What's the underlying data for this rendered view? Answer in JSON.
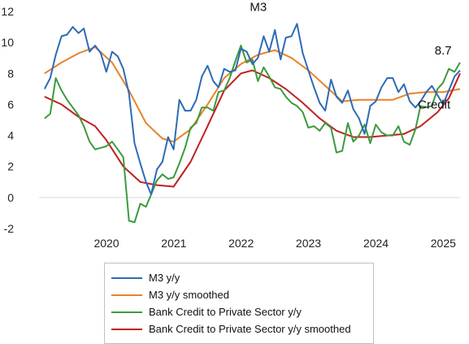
{
  "chart_data": {
    "type": "line",
    "title": "",
    "xlabel": "",
    "ylabel": "",
    "x_range": [
      "2019-07-01",
      "2025-09-30"
    ],
    "year_labels": [
      "2020",
      "2021",
      "2022",
      "2023",
      "2024",
      "2025"
    ],
    "ylim": [
      -2,
      12
    ],
    "y_ticks": [
      "-2",
      "0",
      "2",
      "4",
      "6",
      "8",
      "10",
      "12"
    ],
    "y_tick_values": [
      -2,
      0,
      2,
      4,
      6,
      8,
      10,
      12
    ],
    "grid": false,
    "legend_position": "bottom",
    "annotations": [
      {
        "text": "M3",
        "series": "M3 y/y",
        "x": "2022-11-15",
        "y": 11.2
      },
      {
        "text": "8.7",
        "series": "Bank Credit to Private Sector y/y",
        "x": "2025-08-31",
        "y": 8.7
      },
      {
        "text": "Credit",
        "series": "Bank Credit to Private Sector y/y",
        "x": "2025-07-31",
        "y": 4.9
      }
    ],
    "series": [
      {
        "name": "M3 y/y",
        "color": "#2e6bb5",
        "points": [
          [
            "2019-07-31",
            7.0
          ],
          [
            "2019-08-31",
            7.7
          ],
          [
            "2019-09-30",
            9.2
          ],
          [
            "2019-10-31",
            10.4
          ],
          [
            "2019-11-30",
            10.5
          ],
          [
            "2019-12-31",
            11.0
          ],
          [
            "2020-01-31",
            10.6
          ],
          [
            "2020-02-29",
            10.9
          ],
          [
            "2020-03-31",
            9.4
          ],
          [
            "2020-04-30",
            9.8
          ],
          [
            "2020-05-31",
            9.3
          ],
          [
            "2020-06-30",
            8.1
          ],
          [
            "2020-07-31",
            9.4
          ],
          [
            "2020-08-31",
            9.1
          ],
          [
            "2020-09-30",
            8.3
          ],
          [
            "2020-10-31",
            6.7
          ],
          [
            "2020-11-30",
            3.5
          ],
          [
            "2020-12-31",
            2.2
          ],
          [
            "2021-01-31",
            1.0
          ],
          [
            "2021-02-28",
            0.2
          ],
          [
            "2021-03-31",
            1.8
          ],
          [
            "2021-04-30",
            2.3
          ],
          [
            "2021-05-31",
            3.9
          ],
          [
            "2021-06-30",
            3.1
          ],
          [
            "2021-07-31",
            6.3
          ],
          [
            "2021-08-31",
            5.6
          ],
          [
            "2021-09-30",
            5.6
          ],
          [
            "2021-10-31",
            6.3
          ],
          [
            "2021-11-30",
            7.8
          ],
          [
            "2021-12-31",
            8.5
          ],
          [
            "2022-01-31",
            7.5
          ],
          [
            "2022-02-28",
            7.1
          ],
          [
            "2022-03-31",
            8.3
          ],
          [
            "2022-04-30",
            8.1
          ],
          [
            "2022-05-31",
            8.2
          ],
          [
            "2022-06-30",
            9.6
          ],
          [
            "2022-07-31",
            9.4
          ],
          [
            "2022-08-31",
            8.6
          ],
          [
            "2022-09-30",
            9.0
          ],
          [
            "2022-10-31",
            10.4
          ],
          [
            "2022-11-30",
            9.4
          ],
          [
            "2022-12-31",
            10.8
          ],
          [
            "2023-01-31",
            8.9
          ],
          [
            "2023-02-28",
            10.3
          ],
          [
            "2023-03-31",
            10.4
          ],
          [
            "2023-04-30",
            11.2
          ],
          [
            "2023-05-31",
            9.3
          ],
          [
            "2023-06-30",
            8.2
          ],
          [
            "2023-07-31",
            7.1
          ],
          [
            "2023-08-31",
            6.1
          ],
          [
            "2023-09-30",
            5.6
          ],
          [
            "2023-10-31",
            7.6
          ],
          [
            "2023-11-30",
            6.5
          ],
          [
            "2023-12-31",
            6.1
          ],
          [
            "2024-01-31",
            6.9
          ],
          [
            "2024-02-29",
            5.7
          ],
          [
            "2024-03-31",
            5.1
          ],
          [
            "2024-04-30",
            4.1
          ],
          [
            "2024-05-31",
            5.9
          ],
          [
            "2024-06-30",
            6.2
          ],
          [
            "2024-07-31",
            7.1
          ],
          [
            "2024-08-31",
            7.7
          ],
          [
            "2024-09-30",
            7.7
          ],
          [
            "2024-10-31",
            6.8
          ],
          [
            "2024-11-30",
            7.3
          ],
          [
            "2024-12-31",
            6.2
          ],
          [
            "2025-01-31",
            5.8
          ],
          [
            "2025-02-28",
            6.2
          ],
          [
            "2025-03-31",
            6.8
          ],
          [
            "2025-04-30",
            7.2
          ],
          [
            "2025-05-31",
            6.6
          ],
          [
            "2025-06-30",
            6.0
          ],
          [
            "2025-07-31",
            6.9
          ],
          [
            "2025-08-31",
            7.8
          ],
          [
            "2025-09-30",
            8.2
          ]
        ]
      },
      {
        "name": "M3 y/y smoothed",
        "color": "#e8822a",
        "points": [
          [
            "2019-07-31",
            8.0
          ],
          [
            "2019-10-31",
            8.7
          ],
          [
            "2020-01-31",
            9.3
          ],
          [
            "2020-04-30",
            9.7
          ],
          [
            "2020-07-31",
            8.7
          ],
          [
            "2020-10-31",
            6.9
          ],
          [
            "2021-01-31",
            4.8
          ],
          [
            "2021-04-30",
            3.8
          ],
          [
            "2021-06-30",
            3.6
          ],
          [
            "2021-09-30",
            4.4
          ],
          [
            "2021-12-31",
            6.0
          ],
          [
            "2022-03-31",
            7.7
          ],
          [
            "2022-06-30",
            8.6
          ],
          [
            "2022-09-30",
            9.2
          ],
          [
            "2022-12-31",
            9.5
          ],
          [
            "2023-03-31",
            9.0
          ],
          [
            "2023-06-30",
            8.2
          ],
          [
            "2023-09-30",
            7.2
          ],
          [
            "2023-12-31",
            6.2
          ],
          [
            "2024-03-31",
            6.3
          ],
          [
            "2024-06-30",
            6.3
          ],
          [
            "2024-09-30",
            6.3
          ],
          [
            "2024-12-31",
            6.7
          ],
          [
            "2025-03-31",
            6.8
          ],
          [
            "2025-06-30",
            6.8
          ],
          [
            "2025-09-30",
            7.0
          ]
        ]
      },
      {
        "name": "Bank Credit to Private Sector y/y",
        "color": "#3c9a3c",
        "points": [
          [
            "2019-07-31",
            5.1
          ],
          [
            "2019-08-31",
            5.4
          ],
          [
            "2019-09-30",
            7.7
          ],
          [
            "2019-10-31",
            6.9
          ],
          [
            "2019-11-30",
            6.3
          ],
          [
            "2019-12-31",
            5.8
          ],
          [
            "2020-01-31",
            5.3
          ],
          [
            "2020-02-29",
            4.6
          ],
          [
            "2020-03-31",
            3.6
          ],
          [
            "2020-04-30",
            3.1
          ],
          [
            "2020-05-31",
            3.2
          ],
          [
            "2020-06-30",
            3.3
          ],
          [
            "2020-07-31",
            3.6
          ],
          [
            "2020-08-31",
            3.1
          ],
          [
            "2020-09-30",
            2.6
          ],
          [
            "2020-10-31",
            -1.5
          ],
          [
            "2020-11-30",
            -1.6
          ],
          [
            "2020-12-31",
            -0.4
          ],
          [
            "2021-01-31",
            -0.6
          ],
          [
            "2021-02-28",
            0.2
          ],
          [
            "2021-03-31",
            1.1
          ],
          [
            "2021-04-30",
            1.5
          ],
          [
            "2021-05-31",
            1.2
          ],
          [
            "2021-06-30",
            1.3
          ],
          [
            "2021-07-31",
            2.2
          ],
          [
            "2021-08-31",
            3.2
          ],
          [
            "2021-09-30",
            4.5
          ],
          [
            "2021-10-31",
            4.8
          ],
          [
            "2021-11-30",
            5.8
          ],
          [
            "2021-12-31",
            5.8
          ],
          [
            "2022-01-31",
            5.6
          ],
          [
            "2022-02-28",
            6.8
          ],
          [
            "2022-03-31",
            6.9
          ],
          [
            "2022-04-30",
            7.7
          ],
          [
            "2022-05-31",
            8.8
          ],
          [
            "2022-06-30",
            9.8
          ],
          [
            "2022-07-31",
            8.7
          ],
          [
            "2022-08-31",
            8.9
          ],
          [
            "2022-09-30",
            7.5
          ],
          [
            "2022-10-31",
            8.4
          ],
          [
            "2022-11-30",
            7.8
          ],
          [
            "2022-12-31",
            7.1
          ],
          [
            "2023-01-31",
            7.0
          ],
          [
            "2023-02-28",
            6.5
          ],
          [
            "2023-03-31",
            6.1
          ],
          [
            "2023-04-30",
            5.9
          ],
          [
            "2023-05-31",
            5.5
          ],
          [
            "2023-06-30",
            4.5
          ],
          [
            "2023-07-31",
            4.6
          ],
          [
            "2023-08-31",
            4.3
          ],
          [
            "2023-09-30",
            4.8
          ],
          [
            "2023-10-31",
            4.5
          ],
          [
            "2023-11-30",
            2.9
          ],
          [
            "2023-12-31",
            3.0
          ],
          [
            "2024-01-31",
            4.8
          ],
          [
            "2024-02-29",
            3.6
          ],
          [
            "2024-03-31",
            4.0
          ],
          [
            "2024-04-30",
            4.7
          ],
          [
            "2024-05-31",
            3.5
          ],
          [
            "2024-06-30",
            4.7
          ],
          [
            "2024-07-31",
            4.2
          ],
          [
            "2024-08-31",
            4.0
          ],
          [
            "2024-09-30",
            4.0
          ],
          [
            "2024-10-31",
            4.6
          ],
          [
            "2024-11-30",
            3.6
          ],
          [
            "2024-12-31",
            3.4
          ],
          [
            "2025-01-31",
            4.4
          ],
          [
            "2025-02-28",
            5.9
          ],
          [
            "2025-03-31",
            5.8
          ],
          [
            "2025-04-30",
            5.9
          ],
          [
            "2025-05-31",
            7.0
          ],
          [
            "2025-06-30",
            7.4
          ],
          [
            "2025-07-31",
            8.3
          ],
          [
            "2025-08-31",
            8.1
          ],
          [
            "2025-09-30",
            8.7
          ]
        ]
      },
      {
        "name": "Bank Credit to Private Sector y/y smoothed",
        "color": "#c0201f",
        "points": [
          [
            "2019-07-31",
            6.5
          ],
          [
            "2019-10-31",
            6.0
          ],
          [
            "2020-01-31",
            5.2
          ],
          [
            "2020-04-30",
            4.6
          ],
          [
            "2020-06-30",
            3.7
          ],
          [
            "2020-09-30",
            2.0
          ],
          [
            "2020-12-31",
            1.0
          ],
          [
            "2021-03-31",
            0.8
          ],
          [
            "2021-06-30",
            0.7
          ],
          [
            "2021-09-30",
            2.3
          ],
          [
            "2021-12-31",
            4.6
          ],
          [
            "2022-03-31",
            6.9
          ],
          [
            "2022-06-30",
            8.0
          ],
          [
            "2022-08-31",
            8.2
          ],
          [
            "2022-11-30",
            7.7
          ],
          [
            "2023-02-28",
            7.0
          ],
          [
            "2023-05-31",
            6.1
          ],
          [
            "2023-08-31",
            5.1
          ],
          [
            "2023-11-30",
            4.3
          ],
          [
            "2024-02-29",
            3.9
          ],
          [
            "2024-05-31",
            3.9
          ],
          [
            "2024-08-31",
            4.0
          ],
          [
            "2024-11-30",
            4.1
          ],
          [
            "2025-02-28",
            4.6
          ],
          [
            "2025-05-31",
            5.5
          ],
          [
            "2025-07-31",
            6.4
          ],
          [
            "2025-09-30",
            8.0
          ]
        ]
      }
    ]
  }
}
